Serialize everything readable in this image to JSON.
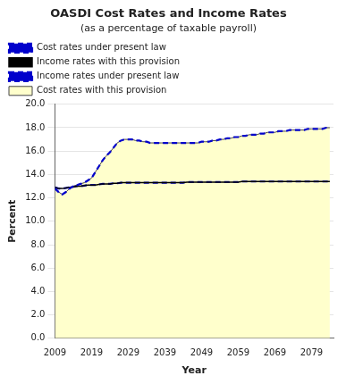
{
  "chart_data": {
    "type": "line",
    "title": "OASDI Cost Rates and Income Rates",
    "subtitle": "(as a percentage of taxable payroll)",
    "xlabel": "Year",
    "ylabel": "Percent",
    "x": [
      2009,
      2010,
      2011,
      2012,
      2013,
      2014,
      2015,
      2016,
      2017,
      2018,
      2019,
      2020,
      2021,
      2022,
      2023,
      2024,
      2025,
      2026,
      2027,
      2028,
      2029,
      2030,
      2031,
      2032,
      2033,
      2034,
      2035,
      2036,
      2037,
      2038,
      2039,
      2040,
      2041,
      2042,
      2043,
      2044,
      2045,
      2046,
      2047,
      2048,
      2049,
      2050,
      2051,
      2052,
      2053,
      2054,
      2055,
      2056,
      2057,
      2058,
      2059,
      2060,
      2061,
      2062,
      2063,
      2064,
      2065,
      2066,
      2067,
      2068,
      2069,
      2070,
      2071,
      2072,
      2073,
      2074,
      2075,
      2076,
      2077,
      2078,
      2079,
      2080,
      2081,
      2082,
      2083,
      2084
    ],
    "series": [
      {
        "name": "Cost rates with this provision",
        "type": "area",
        "color": "#ffffcc",
        "line_style": "solid",
        "values": [
          12.8,
          12.5,
          12.3,
          12.5,
          12.8,
          13.0,
          13.1,
          13.2,
          13.3,
          13.5,
          13.7,
          14.2,
          14.7,
          15.2,
          15.6,
          15.9,
          16.3,
          16.7,
          16.9,
          17.0,
          17.0,
          17.0,
          16.9,
          16.9,
          16.8,
          16.8,
          16.7,
          16.7,
          16.7,
          16.7,
          16.7,
          16.7,
          16.7,
          16.7,
          16.7,
          16.7,
          16.7,
          16.7,
          16.7,
          16.7,
          16.8,
          16.8,
          16.8,
          16.9,
          16.9,
          17.0,
          17.0,
          17.1,
          17.1,
          17.2,
          17.2,
          17.3,
          17.3,
          17.4,
          17.4,
          17.4,
          17.5,
          17.5,
          17.6,
          17.6,
          17.6,
          17.7,
          17.7,
          17.7,
          17.8,
          17.8,
          17.8,
          17.8,
          17.8,
          17.9,
          17.9,
          17.9,
          17.9,
          17.9,
          18.0,
          18.0
        ]
      },
      {
        "name": "Income rates under present law",
        "type": "line",
        "color": "#0000cc",
        "line_style": "dashed",
        "values": [
          12.9,
          12.8,
          12.8,
          12.85,
          12.9,
          12.95,
          13.0,
          13.0,
          13.05,
          13.1,
          13.1,
          13.1,
          13.15,
          13.2,
          13.2,
          13.2,
          13.25,
          13.25,
          13.3,
          13.3,
          13.3,
          13.3,
          13.3,
          13.3,
          13.3,
          13.3,
          13.3,
          13.3,
          13.3,
          13.3,
          13.3,
          13.3,
          13.3,
          13.3,
          13.3,
          13.3,
          13.35,
          13.35,
          13.35,
          13.35,
          13.35,
          13.35,
          13.35,
          13.35,
          13.35,
          13.35,
          13.35,
          13.35,
          13.35,
          13.35,
          13.35,
          13.4,
          13.4,
          13.4,
          13.4,
          13.4,
          13.4,
          13.4,
          13.4,
          13.4,
          13.4,
          13.4,
          13.4,
          13.4,
          13.4,
          13.4,
          13.4,
          13.4,
          13.4,
          13.4,
          13.4,
          13.4,
          13.4,
          13.4,
          13.4,
          13.4
        ]
      },
      {
        "name": "Income rates with this provision",
        "type": "line",
        "color": "#000000",
        "line_style": "solid",
        "values": [
          12.9,
          12.8,
          12.8,
          12.85,
          12.9,
          12.95,
          13.0,
          13.0,
          13.05,
          13.1,
          13.1,
          13.1,
          13.15,
          13.2,
          13.2,
          13.2,
          13.25,
          13.25,
          13.3,
          13.3,
          13.3,
          13.3,
          13.3,
          13.3,
          13.3,
          13.3,
          13.3,
          13.3,
          13.3,
          13.3,
          13.3,
          13.3,
          13.3,
          13.3,
          13.3,
          13.3,
          13.35,
          13.35,
          13.35,
          13.35,
          13.35,
          13.35,
          13.35,
          13.35,
          13.35,
          13.35,
          13.35,
          13.35,
          13.35,
          13.35,
          13.35,
          13.4,
          13.4,
          13.4,
          13.4,
          13.4,
          13.4,
          13.4,
          13.4,
          13.4,
          13.4,
          13.4,
          13.4,
          13.4,
          13.4,
          13.4,
          13.4,
          13.4,
          13.4,
          13.4,
          13.4,
          13.4,
          13.4,
          13.4,
          13.4,
          13.4
        ]
      },
      {
        "name": "Cost rates under present law",
        "type": "line",
        "color": "#0000cc",
        "line_style": "dashed",
        "values": [
          12.8,
          12.5,
          12.3,
          12.5,
          12.8,
          13.0,
          13.1,
          13.2,
          13.3,
          13.5,
          13.7,
          14.2,
          14.7,
          15.2,
          15.6,
          15.9,
          16.3,
          16.7,
          16.9,
          17.0,
          17.0,
          17.0,
          16.9,
          16.9,
          16.8,
          16.8,
          16.7,
          16.7,
          16.7,
          16.7,
          16.7,
          16.7,
          16.7,
          16.7,
          16.7,
          16.7,
          16.7,
          16.7,
          16.7,
          16.7,
          16.8,
          16.8,
          16.8,
          16.9,
          16.9,
          17.0,
          17.0,
          17.1,
          17.1,
          17.2,
          17.2,
          17.3,
          17.3,
          17.4,
          17.4,
          17.4,
          17.5,
          17.5,
          17.6,
          17.6,
          17.6,
          17.7,
          17.7,
          17.7,
          17.8,
          17.8,
          17.8,
          17.8,
          17.8,
          17.9,
          17.9,
          17.9,
          17.9,
          17.9,
          18.0,
          18.0
        ]
      }
    ],
    "xlim": [
      2009,
      2085
    ],
    "xticks": [
      2009,
      2019,
      2029,
      2039,
      2049,
      2059,
      2069,
      2079
    ],
    "ylim": [
      0.0,
      20.0
    ],
    "yticks": [
      {
        "value": 0.0,
        "label": "0.0"
      },
      {
        "value": 2.0,
        "label": "2.0"
      },
      {
        "value": 4.0,
        "label": "4.0"
      },
      {
        "value": 6.0,
        "label": "6.0"
      },
      {
        "value": 8.0,
        "label": "8.0"
      },
      {
        "value": 10.0,
        "label": "10.0"
      },
      {
        "value": 12.0,
        "label": "12.0"
      },
      {
        "value": 14.0,
        "label": "14.0"
      },
      {
        "value": 16.0,
        "label": "16.0"
      },
      {
        "value": 18.0,
        "label": "18.0"
      },
      {
        "value": 20.0,
        "label": "20.0"
      }
    ],
    "grid": true,
    "legend": "top"
  }
}
